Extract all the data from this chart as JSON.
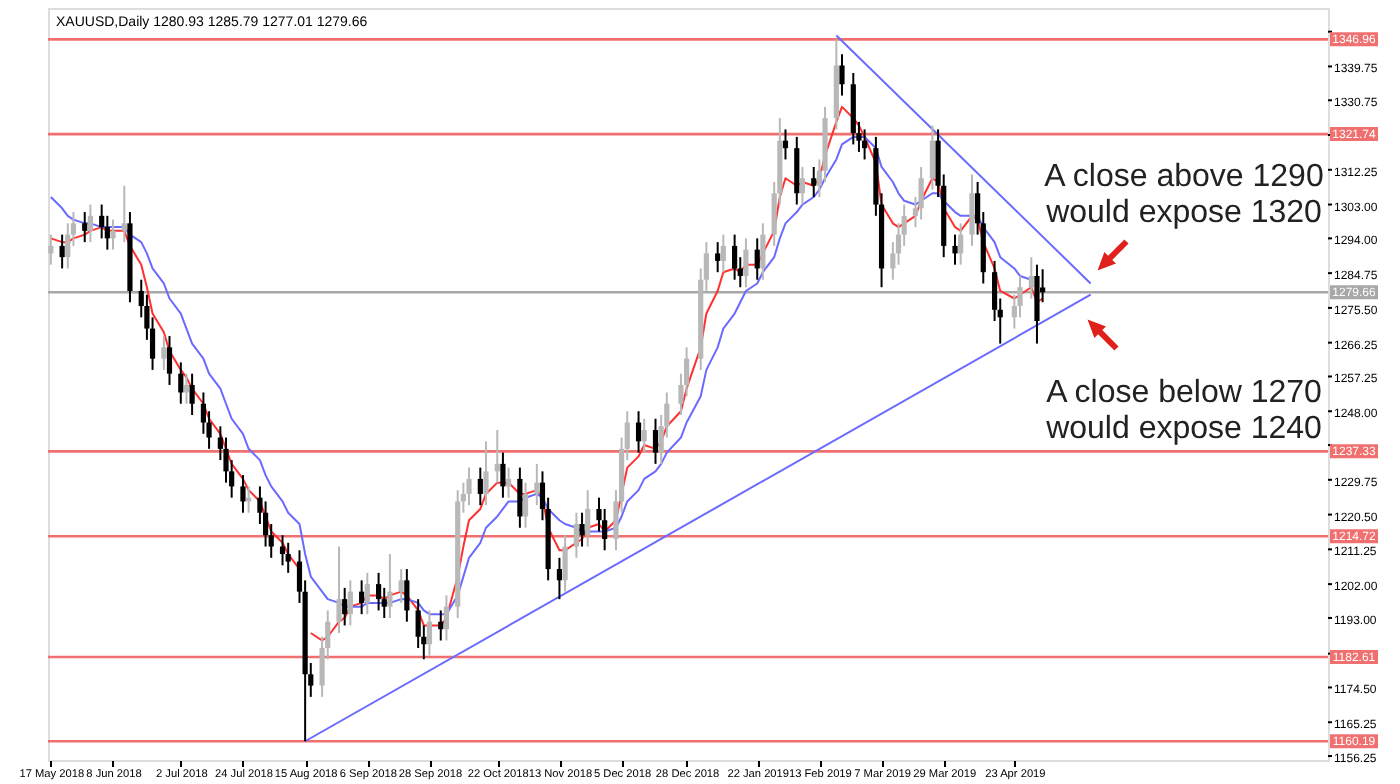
{
  "chart_data": {
    "type": "candlestick",
    "title": "XAUUSD,Daily 1280.93 1285.79 1277.01 1279.66",
    "x": [
      "2018-05-17",
      "2018-05-21",
      "2018-05-23",
      "2018-05-25",
      "2018-05-29",
      "2018-05-31",
      "2018-06-04",
      "2018-06-06",
      "2018-06-08",
      "2018-06-12",
      "2018-06-14",
      "2018-06-18",
      "2018-06-20",
      "2018-06-22",
      "2018-06-26",
      "2018-06-28",
      "2018-07-02",
      "2018-07-04",
      "2018-07-06",
      "2018-07-10",
      "2018-07-12",
      "2018-07-16",
      "2018-07-18",
      "2018-07-20",
      "2018-07-24",
      "2018-07-26",
      "2018-07-30",
      "2018-08-01",
      "2018-08-03",
      "2018-08-07",
      "2018-08-09",
      "2018-08-13",
      "2018-08-15",
      "2018-08-17",
      "2018-08-21",
      "2018-08-23",
      "2018-08-27",
      "2018-08-29",
      "2018-08-31",
      "2018-09-04",
      "2018-09-06",
      "2018-09-10",
      "2018-09-12",
      "2018-09-14",
      "2018-09-18",
      "2018-09-20",
      "2018-09-24",
      "2018-09-26",
      "2018-09-28",
      "2018-10-02",
      "2018-10-04",
      "2018-10-08",
      "2018-10-10",
      "2018-10-12",
      "2018-10-16",
      "2018-10-18",
      "2018-10-22",
      "2018-10-24",
      "2018-10-26",
      "2018-10-30",
      "2018-11-01",
      "2018-11-05",
      "2018-11-07",
      "2018-11-09",
      "2018-11-13",
      "2018-11-15",
      "2018-11-19",
      "2018-11-21",
      "2018-11-23",
      "2018-11-27",
      "2018-11-29",
      "2018-12-03",
      "2018-12-05",
      "2018-12-07",
      "2018-12-11",
      "2018-12-13",
      "2018-12-17",
      "2018-12-19",
      "2018-12-21",
      "2018-12-26",
      "2018-12-28",
      "2019-01-02",
      "2019-01-04",
      "2019-01-08",
      "2019-01-10",
      "2019-01-14",
      "2019-01-16",
      "2019-01-18",
      "2019-01-22",
      "2019-01-24",
      "2019-01-28",
      "2019-01-30",
      "2019-02-01",
      "2019-02-05",
      "2019-02-07",
      "2019-02-11",
      "2019-02-13",
      "2019-02-15",
      "2019-02-19",
      "2019-02-21",
      "2019-02-25",
      "2019-02-27",
      "2019-03-01",
      "2019-03-05",
      "2019-03-07",
      "2019-03-11",
      "2019-03-13",
      "2019-03-15",
      "2019-03-19",
      "2019-03-21",
      "2019-03-25",
      "2019-03-27",
      "2019-03-29",
      "2019-04-02",
      "2019-04-04",
      "2019-04-08",
      "2019-04-10",
      "2019-04-12",
      "2019-04-16",
      "2019-04-18",
      "2019-04-23",
      "2019-04-25",
      "2019-04-29",
      "2019-05-01",
      "2019-05-03"
    ],
    "ohlc": [
      [
        1290,
        1295,
        1287,
        1292
      ],
      [
        1292,
        1295,
        1286,
        1289
      ],
      [
        1289,
        1298,
        1286,
        1295
      ],
      [
        1295,
        1301,
        1292,
        1298
      ],
      [
        1298,
        1301,
        1293,
        1296
      ],
      [
        1296,
        1303,
        1293,
        1300
      ],
      [
        1300,
        1303,
        1294,
        1297
      ],
      [
        1297,
        1300,
        1291,
        1294
      ],
      [
        1294,
        1299,
        1291,
        1296
      ],
      [
        1296,
        1308,
        1293,
        1298
      ],
      [
        1298,
        1301,
        1277,
        1280
      ],
      [
        1280,
        1283,
        1273,
        1276
      ],
      [
        1276,
        1279,
        1267,
        1270
      ],
      [
        1270,
        1273,
        1259,
        1262
      ],
      [
        1262,
        1268,
        1259,
        1265
      ],
      [
        1265,
        1268,
        1255,
        1258
      ],
      [
        1258,
        1261,
        1250,
        1253
      ],
      [
        1253,
        1258,
        1250,
        1255
      ],
      [
        1255,
        1258,
        1247,
        1250
      ],
      [
        1250,
        1253,
        1242,
        1245
      ],
      [
        1245,
        1248,
        1238,
        1241
      ],
      [
        1241,
        1244,
        1235,
        1238
      ],
      [
        1238,
        1241,
        1229,
        1232
      ],
      [
        1232,
        1235,
        1225,
        1228
      ],
      [
        1228,
        1231,
        1221,
        1224
      ],
      [
        1224,
        1228,
        1221,
        1225
      ],
      [
        1225,
        1228,
        1218,
        1221
      ],
      [
        1221,
        1224,
        1212,
        1215
      ],
      [
        1215,
        1218,
        1209,
        1212
      ],
      [
        1212,
        1215,
        1207,
        1210
      ],
      [
        1210,
        1213,
        1205,
        1208
      ],
      [
        1208,
        1211,
        1197,
        1200
      ],
      [
        1200,
        1203,
        1160.19,
        1178
      ],
      [
        1178,
        1181,
        1172,
        1175
      ],
      [
        1175,
        1188,
        1172,
        1185
      ],
      [
        1185,
        1195,
        1182,
        1192
      ],
      [
        1192,
        1212,
        1189,
        1198
      ],
      [
        1198,
        1201,
        1191,
        1194
      ],
      [
        1194,
        1203,
        1191,
        1200
      ],
      [
        1200,
        1203,
        1194,
        1197
      ],
      [
        1197,
        1205,
        1194,
        1202
      ],
      [
        1202,
        1205,
        1195,
        1198
      ],
      [
        1198,
        1201,
        1193,
        1196
      ],
      [
        1196,
        1210,
        1193,
        1200
      ],
      [
        1200,
        1206,
        1197,
        1203
      ],
      [
        1203,
        1206,
        1192,
        1195
      ],
      [
        1195,
        1198,
        1185,
        1188
      ],
      [
        1188,
        1191,
        1182,
        1186
      ],
      [
        1186,
        1195,
        1183,
        1192
      ],
      [
        1192,
        1195,
        1187,
        1190
      ],
      [
        1190,
        1199,
        1187,
        1196
      ],
      [
        1196,
        1227,
        1193,
        1224
      ],
      [
        1224,
        1229,
        1221,
        1226
      ],
      [
        1226,
        1233,
        1223,
        1230
      ],
      [
        1230,
        1233,
        1223,
        1226
      ],
      [
        1226,
        1240,
        1223,
        1232
      ],
      [
        1232,
        1243,
        1229,
        1234
      ],
      [
        1234,
        1237,
        1225,
        1228
      ],
      [
        1228,
        1233,
        1225,
        1230
      ],
      [
        1230,
        1233,
        1217,
        1220
      ],
      [
        1220,
        1229,
        1217,
        1226
      ],
      [
        1226,
        1234,
        1223,
        1229
      ],
      [
        1229,
        1232,
        1219,
        1222
      ],
      [
        1222,
        1225,
        1203,
        1206
      ],
      [
        1206,
        1209,
        1198,
        1203
      ],
      [
        1203,
        1215,
        1200,
        1212
      ],
      [
        1212,
        1221,
        1209,
        1218
      ],
      [
        1218,
        1221,
        1212,
        1215
      ],
      [
        1215,
        1227,
        1212,
        1222
      ],
      [
        1222,
        1225,
        1216,
        1219
      ],
      [
        1219,
        1222,
        1211,
        1214
      ],
      [
        1214,
        1227,
        1211,
        1224
      ],
      [
        1224,
        1241,
        1221,
        1238
      ],
      [
        1238,
        1248,
        1235,
        1245
      ],
      [
        1245,
        1248,
        1237,
        1240
      ],
      [
        1240,
        1246,
        1237,
        1243
      ],
      [
        1243,
        1246,
        1234,
        1237
      ],
      [
        1237,
        1247,
        1234,
        1244
      ],
      [
        1244,
        1253,
        1241,
        1250
      ],
      [
        1250,
        1258,
        1247,
        1255
      ],
      [
        1255,
        1265,
        1252,
        1262
      ],
      [
        1262,
        1286,
        1259,
        1283
      ],
      [
        1283,
        1293,
        1280,
        1290
      ],
      [
        1290,
        1293,
        1285,
        1288
      ],
      [
        1288,
        1295,
        1285,
        1292
      ],
      [
        1292,
        1295,
        1283,
        1286
      ],
      [
        1286,
        1289,
        1281,
        1284
      ],
      [
        1284,
        1294,
        1281,
        1291
      ],
      [
        1291,
        1294,
        1283,
        1286
      ],
      [
        1286,
        1298,
        1283,
        1295
      ],
      [
        1295,
        1309,
        1292,
        1306
      ],
      [
        1306,
        1326,
        1303,
        1320
      ],
      [
        1320,
        1323,
        1315,
        1318
      ],
      [
        1318,
        1321,
        1303,
        1306
      ],
      [
        1306,
        1313,
        1303,
        1310
      ],
      [
        1310,
        1313,
        1305,
        1308
      ],
      [
        1308,
        1315,
        1305,
        1312
      ],
      [
        1312,
        1329,
        1309,
        1326
      ],
      [
        1326,
        1346.96,
        1323,
        1340
      ],
      [
        1340,
        1343,
        1332,
        1335
      ],
      [
        1335,
        1338,
        1319,
        1322
      ],
      [
        1322,
        1325,
        1317,
        1320
      ],
      [
        1320,
        1323,
        1315,
        1318
      ],
      [
        1318,
        1321,
        1300,
        1303
      ],
      [
        1303,
        1306,
        1281,
        1286
      ],
      [
        1286,
        1293,
        1283,
        1290
      ],
      [
        1290,
        1298,
        1287,
        1295
      ],
      [
        1295,
        1303,
        1292,
        1300
      ],
      [
        1300,
        1305,
        1297,
        1302
      ],
      [
        1302,
        1313,
        1299,
        1310
      ],
      [
        1310,
        1324,
        1307,
        1320
      ],
      [
        1320,
        1323,
        1305,
        1308
      ],
      [
        1308,
        1311,
        1289,
        1292
      ],
      [
        1292,
        1295,
        1287,
        1290
      ],
      [
        1290,
        1298,
        1287,
        1295
      ],
      [
        1295,
        1311,
        1292,
        1306
      ],
      [
        1306,
        1309,
        1295,
        1298
      ],
      [
        1298,
        1301,
        1282,
        1285
      ],
      [
        1285,
        1288,
        1272,
        1275
      ],
      [
        1275,
        1278,
        1266,
        1273
      ],
      [
        1273,
        1279,
        1270,
        1276
      ],
      [
        1276,
        1284,
        1273,
        1281
      ],
      [
        1281,
        1289,
        1278,
        1284
      ],
      [
        1284,
        1287,
        1266,
        1272
      ],
      [
        1280.93,
        1285.79,
        1277.01,
        1279.66
      ]
    ],
    "series": [
      {
        "type": "line",
        "color": "#ff3030",
        "values": [
          1294,
          1293,
          1293,
          1294,
          1295,
          1296,
          1297,
          1296,
          1296,
          1296,
          1292,
          1287,
          1281,
          1274,
          1269,
          1264,
          1259,
          1257,
          1254,
          1250,
          1246,
          1242,
          1238,
          1234,
          1230,
          1227,
          1224,
          1220,
          1216,
          1213,
          1210,
          1206,
          null,
          1189,
          1187,
          1188,
          1192,
          1193,
          1196,
          1197,
          1199,
          1199,
          1198,
          1199,
          1200,
          1199,
          1195,
          1191,
          1191,
          1191,
          1193,
          1204,
          1212,
          1219,
          1222,
          1226,
          1229,
          1229,
          1229,
          1226,
          1226,
          1227,
          1225,
          1217,
          1211,
          1211,
          1213,
          1214,
          1217,
          1218,
          1216,
          1219,
          1226,
          1233,
          1236,
          1239,
          1238,
          1240,
          1244,
          1248,
          1254,
          1265,
          1274,
          1280,
          1285,
          1286,
          1285,
          1287,
          1287,
          1290,
          1296,
          1305,
          1310,
          1308,
          1309,
          1308,
          1310,
          1316,
          1325,
          1329,
          1326,
          1324,
          1321,
          1314,
          1303,
          1298,
          1297,
          1298,
          1300,
          1304,
          1310,
          1309,
          1302,
          1297,
          1296,
          1300,
          1299,
          1293,
          1286,
          1280,
          1278,
          1279,
          1281,
          1277,
          1278
        ]
      },
      {
        "type": "line",
        "color": "#6a6aff",
        "values": [
          1305,
          1302,
          1300,
          1299,
          1298,
          1298,
          1297,
          1297,
          1297,
          1297,
          1295,
          1293,
          1290,
          1286,
          1282,
          1278,
          1274,
          1270,
          1266,
          1262,
          1258,
          1254,
          1250,
          1246,
          1242,
          1238,
          1235,
          1231,
          1228,
          1224,
          1221,
          1218,
          1210,
          1204,
          1200,
          1198,
          1197,
          1196,
          1196,
          1196,
          1197,
          1197,
          1197,
          1197,
          1198,
          1198,
          1197,
          1195,
          1194,
          1194,
          1194,
          1199,
          1204,
          1209,
          1213,
          1217,
          1220,
          1222,
          1224,
          1224,
          1225,
          1226,
          1225,
          1222,
          1219,
          1218,
          1217,
          1216,
          1216,
          1216,
          1216,
          1217,
          1220,
          1224,
          1227,
          1230,
          1232,
          1234,
          1237,
          1241,
          1245,
          1252,
          1259,
          1265,
          1270,
          1274,
          1277,
          1280,
          1282,
          1285,
          1289,
          1294,
          1298,
          1301,
          1303,
          1305,
          1307,
          1310,
          1315,
          1319,
          1321,
          1321,
          1321,
          1318,
          1313,
          1309,
          1306,
          1304,
          1303,
          1304,
          1306,
          1306,
          1304,
          1301,
          1300,
          1300,
          1300,
          1297,
          1293,
          1289,
          1286,
          1284,
          1283,
          null,
          null
        ]
      },
      {
        "type": "line",
        "color": "#6a6aff",
        "x": [
          "2018-08-15",
          "2019-05-20"
        ],
        "values": [
          1160.19,
          1279
        ]
      },
      {
        "type": "line",
        "color": "#6a6aff",
        "x": [
          "2019-02-19",
          "2019-05-20"
        ],
        "values": [
          1348,
          1282
        ]
      }
    ],
    "xlim": [
      "2018-05-16",
      "2019-08-12"
    ],
    "ylim": [
      1155.2,
      1355.3
    ],
    "xticks": [
      {
        "value": "2018-05-17",
        "label": "17 May 2018"
      },
      {
        "value": "2018-06-08",
        "label": "8 Jun 2018"
      },
      {
        "value": "2018-07-02",
        "label": "2 Jul 2018"
      },
      {
        "value": "2018-07-24",
        "label": "24 Jul 2018"
      },
      {
        "value": "2018-08-15",
        "label": "15 Aug 2018"
      },
      {
        "value": "2018-09-06",
        "label": "6 Sep 2018"
      },
      {
        "value": "2018-09-28",
        "label": "28 Sep 2018"
      },
      {
        "value": "2018-10-22",
        "label": "22 Oct 2018"
      },
      {
        "value": "2018-11-13",
        "label": "13 Nov 2018"
      },
      {
        "value": "2018-12-05",
        "label": "5 Dec 2018"
      },
      {
        "value": "2018-12-28",
        "label": "28 Dec 2018"
      },
      {
        "value": "2019-01-22",
        "label": "22 Jan 2019"
      },
      {
        "value": "2019-02-13",
        "label": "13 Feb 2019"
      },
      {
        "value": "2019-03-07",
        "label": "7 Mar 2019"
      },
      {
        "value": "2019-03-29",
        "label": "29 Mar 2019"
      },
      {
        "value": "2019-04-23",
        "label": "23 Apr 2019"
      }
    ],
    "yticks": [
      {
        "value": 1156.25,
        "label": "1156.25"
      },
      {
        "value": 1165.25,
        "label": "1165.25"
      },
      {
        "value": 1174.5,
        "label": "1174.50"
      },
      {
        "value": 1183.5,
        "label": null
      },
      {
        "value": 1193,
        "label": "1193.00"
      },
      {
        "value": 1202,
        "label": "1202.00"
      },
      {
        "value": 1211.25,
        "label": "1211.25"
      },
      {
        "value": 1220.5,
        "label": "1220.50"
      },
      {
        "value": 1229.75,
        "label": "1229.75"
      },
      {
        "value": 1239,
        "label": null
      },
      {
        "value": 1248,
        "label": "1248.00"
      },
      {
        "value": 1257.25,
        "label": "1257.25"
      },
      {
        "value": 1266.25,
        "label": "1266.25"
      },
      {
        "value": 1275.5,
        "label": "1275.50"
      },
      {
        "value": 1284.75,
        "label": "1284.75"
      },
      {
        "value": 1294,
        "label": "1294.00"
      },
      {
        "value": 1303,
        "label": "1303.00"
      },
      {
        "value": 1312.25,
        "label": "1312.25"
      },
      {
        "value": 1321.5,
        "label": null
      },
      {
        "value": 1330.75,
        "label": "1330.75"
      },
      {
        "value": 1339.75,
        "label": "1339.75"
      },
      {
        "value": 1349,
        "label": null
      }
    ],
    "ref_lines": [
      {
        "axis": "y",
        "value": 1346.96,
        "label": "1346.96",
        "color": "#f07070"
      },
      {
        "axis": "y",
        "value": 1321.74,
        "label": "1321.74",
        "color": "#f07070"
      },
      {
        "axis": "y",
        "value": 1279.66,
        "label": "1279.66",
        "color": "#a8a8a8"
      },
      {
        "axis": "y",
        "value": 1237.33,
        "label": "1237.33",
        "color": "#f07070"
      },
      {
        "axis": "y",
        "value": 1214.72,
        "label": "1214.72",
        "color": "#f07070"
      },
      {
        "axis": "y",
        "value": 1182.61,
        "label": "1182.61",
        "color": "#f07070"
      },
      {
        "axis": "y",
        "value": 1160.19,
        "label": "1160.19",
        "color": "#f07070"
      }
    ],
    "annotations": [
      "A close above 1290\nwould expose 1320",
      "A close below 1270\nwould expose 1240"
    ],
    "grid": false
  }
}
